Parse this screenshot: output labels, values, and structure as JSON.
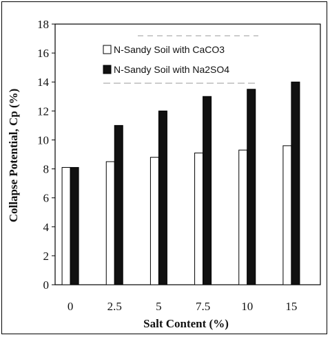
{
  "chart_data": {
    "type": "bar",
    "title": "",
    "xlabel": "Salt Content (%)",
    "ylabel": "Collapse Potential, Cp (%)",
    "categories": [
      "0",
      "2.5",
      "5",
      "7.5",
      "10",
      "15"
    ],
    "ylim": [
      0,
      18
    ],
    "yticks": [
      "0",
      "2",
      "4",
      "6",
      "8",
      "10",
      "12",
      "14",
      "16",
      "18"
    ],
    "legend_position": "top-center",
    "grid": false,
    "series": [
      {
        "name": "N-Sandy Soil with CaCO3",
        "color": "#ffffff",
        "values": [
          8.1,
          8.5,
          8.8,
          9.1,
          9.3,
          9.6
        ]
      },
      {
        "name": "N-Sandy Soil with Na2SO4",
        "color": "#111111",
        "values": [
          8.1,
          11.0,
          12.0,
          13.0,
          13.5,
          14.0
        ]
      }
    ]
  }
}
